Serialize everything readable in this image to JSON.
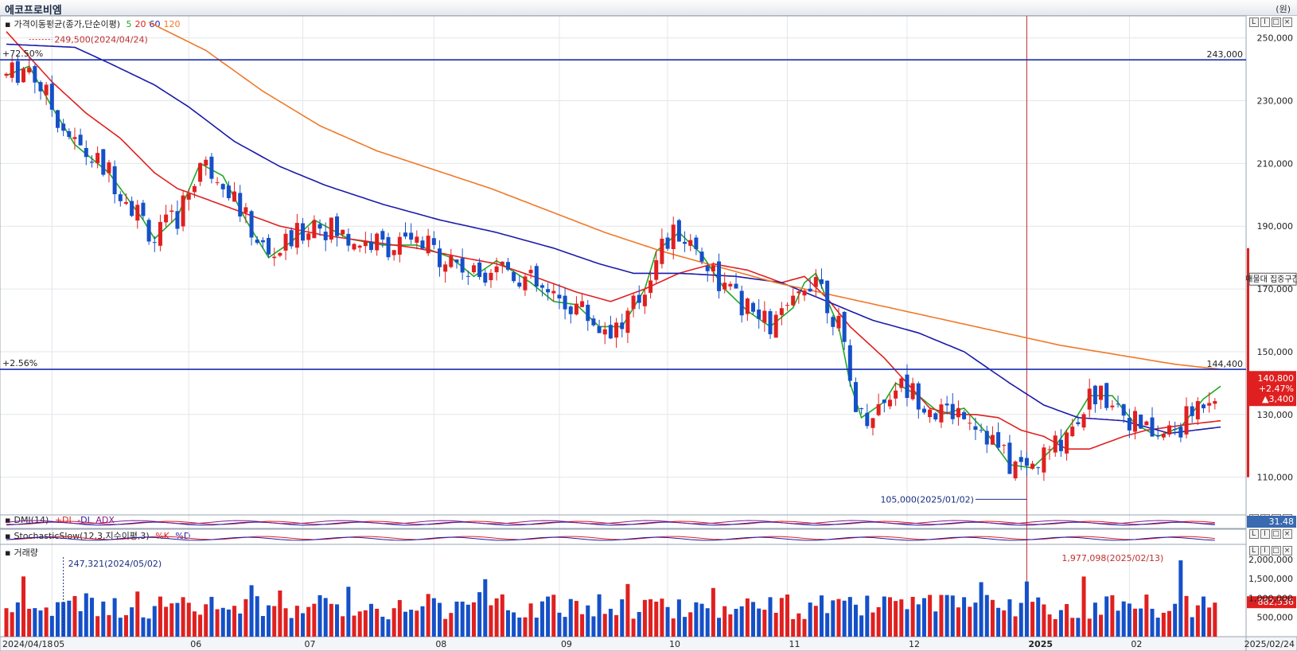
{
  "window": {
    "title": "에코프로비엠",
    "unit": "(원)"
  },
  "price_pane": {
    "legend_label": "가격이동평균(종가,단순이평)",
    "ma_labels": [
      {
        "name": "5",
        "color": "#22a822"
      },
      {
        "name": "20",
        "color": "#e02020"
      },
      {
        "name": "60",
        "color": "#1a1aaa"
      },
      {
        "name": "120",
        "color": "#f07828"
      }
    ],
    "hline_high": {
      "value": "243,000",
      "pct": "+72.50%"
    },
    "hline_low": {
      "value": "144,400",
      "pct": "+2.56%"
    },
    "peak_note": "249,500(2024/04/24)",
    "trough_note": "105,000(2025/01/02)",
    "last_price": {
      "price": "140,800",
      "pct": "+2.47%",
      "change": "▲3,400"
    },
    "concentration_label": "매물대 집중구간"
  },
  "dmi_pane": {
    "label": "DMI(14)",
    "plus": "+DI",
    "minus": "-DI",
    "adx": "ADX",
    "value": "31.48"
  },
  "stoch_pane": {
    "label": "StochasticSlow(12,3,지수이평,3)",
    "k": "%K",
    "d": "%D"
  },
  "volume_pane": {
    "label": "거래량",
    "peak_note_left": "247,321(2024/05/02)",
    "peak_note_right": "1,977,098(2025/02/13)",
    "last_volume": "882,536",
    "y_ticks": [
      "2,000,000",
      "1,500,000",
      "1,000,000",
      "500,000"
    ]
  },
  "x_axis": {
    "start_label": "2024/04/18",
    "end_label": "2025/02/24",
    "months": [
      {
        "label": "05",
        "day": 8
      },
      {
        "label": "06",
        "day": 32
      },
      {
        "label": "07",
        "day": 52
      },
      {
        "label": "08",
        "day": 75
      },
      {
        "label": "09",
        "day": 97
      },
      {
        "label": "10",
        "day": 116
      },
      {
        "label": "11",
        "day": 137
      },
      {
        "label": "12",
        "day": 158
      },
      {
        "label": "2025",
        "day": 179
      },
      {
        "label": "02",
        "day": 197
      }
    ]
  },
  "chart_data": {
    "type": "candlestick",
    "y_ticks": [
      250000,
      230000,
      210000,
      190000,
      170000,
      150000,
      130000,
      110000
    ],
    "ylim": [
      98000,
      257000
    ],
    "volume_ylim": [
      0,
      2350000
    ],
    "trading_days": 213,
    "vertical_marker_day": 179,
    "ma_keypoints": {
      "ma5": [
        [
          0,
          238000
        ],
        [
          4,
          241000
        ],
        [
          8,
          228000
        ],
        [
          12,
          216000
        ],
        [
          18,
          207000
        ],
        [
          24,
          192000
        ],
        [
          26,
          186000
        ],
        [
          30,
          193000
        ],
        [
          34,
          210000
        ],
        [
          38,
          206000
        ],
        [
          42,
          192000
        ],
        [
          46,
          180000
        ],
        [
          50,
          185000
        ],
        [
          54,
          192000
        ],
        [
          60,
          186000
        ],
        [
          66,
          184000
        ],
        [
          72,
          184000
        ],
        [
          78,
          180000
        ],
        [
          82,
          174000
        ],
        [
          86,
          179000
        ],
        [
          92,
          172000
        ],
        [
          96,
          166000
        ],
        [
          100,
          165000
        ],
        [
          104,
          158000
        ],
        [
          108,
          158000
        ],
        [
          112,
          170000
        ],
        [
          114,
          182000
        ],
        [
          118,
          188000
        ],
        [
          122,
          181000
        ],
        [
          126,
          170000
        ],
        [
          130,
          163000
        ],
        [
          134,
          158000
        ],
        [
          138,
          164000
        ],
        [
          140,
          172000
        ],
        [
          142,
          175000
        ],
        [
          146,
          158000
        ],
        [
          148,
          140000
        ],
        [
          150,
          129000
        ],
        [
          154,
          134000
        ],
        [
          156,
          140000
        ],
        [
          160,
          136000
        ],
        [
          164,
          130000
        ],
        [
          168,
          132000
        ],
        [
          172,
          124000
        ],
        [
          176,
          114000
        ],
        [
          180,
          113000
        ],
        [
          184,
          120000
        ],
        [
          188,
          130000
        ],
        [
          190,
          136000
        ],
        [
          194,
          136000
        ],
        [
          198,
          127000
        ],
        [
          202,
          123000
        ],
        [
          206,
          126000
        ],
        [
          210,
          135000
        ],
        [
          213,
          139000
        ]
      ],
      "ma20": [
        [
          0,
          252000
        ],
        [
          8,
          236000
        ],
        [
          14,
          226000
        ],
        [
          20,
          218000
        ],
        [
          26,
          207000
        ],
        [
          30,
          202000
        ],
        [
          36,
          198000
        ],
        [
          42,
          194000
        ],
        [
          48,
          190000
        ],
        [
          56,
          187000
        ],
        [
          64,
          185000
        ],
        [
          72,
          183000
        ],
        [
          80,
          180000
        ],
        [
          86,
          178000
        ],
        [
          94,
          173000
        ],
        [
          100,
          169000
        ],
        [
          106,
          166000
        ],
        [
          112,
          170000
        ],
        [
          118,
          175000
        ],
        [
          124,
          178000
        ],
        [
          130,
          176000
        ],
        [
          136,
          172000
        ],
        [
          140,
          174000
        ],
        [
          144,
          167000
        ],
        [
          148,
          158000
        ],
        [
          154,
          148000
        ],
        [
          158,
          140000
        ],
        [
          162,
          132000
        ],
        [
          166,
          130000
        ],
        [
          170,
          130000
        ],
        [
          174,
          129000
        ],
        [
          178,
          125000
        ],
        [
          182,
          123000
        ],
        [
          186,
          119000
        ],
        [
          190,
          119000
        ],
        [
          196,
          123000
        ],
        [
          200,
          125000
        ],
        [
          204,
          126000
        ],
        [
          208,
          127000
        ],
        [
          213,
          128000
        ]
      ],
      "ma60": [
        [
          0,
          248000
        ],
        [
          12,
          247000
        ],
        [
          18,
          242000
        ],
        [
          26,
          235000
        ],
        [
          32,
          228000
        ],
        [
          40,
          217000
        ],
        [
          48,
          209000
        ],
        [
          56,
          203000
        ],
        [
          66,
          197000
        ],
        [
          76,
          192000
        ],
        [
          86,
          188000
        ],
        [
          96,
          183000
        ],
        [
          104,
          178000
        ],
        [
          110,
          175000
        ],
        [
          118,
          175000
        ],
        [
          128,
          174000
        ],
        [
          136,
          172000
        ],
        [
          144,
          166000
        ],
        [
          152,
          160000
        ],
        [
          160,
          156000
        ],
        [
          168,
          150000
        ],
        [
          176,
          140000
        ],
        [
          182,
          133000
        ],
        [
          188,
          129000
        ],
        [
          196,
          128000
        ],
        [
          204,
          124000
        ],
        [
          213,
          126000
        ]
      ],
      "ma120": [
        [
          25,
          255000
        ],
        [
          35,
          246000
        ],
        [
          45,
          233000
        ],
        [
          55,
          222000
        ],
        [
          65,
          214000
        ],
        [
          75,
          208000
        ],
        [
          85,
          202000
        ],
        [
          95,
          195000
        ],
        [
          105,
          188000
        ],
        [
          115,
          182000
        ],
        [
          125,
          177000
        ],
        [
          135,
          172000
        ],
        [
          145,
          168000
        ],
        [
          155,
          164000
        ],
        [
          165,
          160000
        ],
        [
          175,
          156000
        ],
        [
          185,
          152000
        ],
        [
          195,
          149000
        ],
        [
          205,
          146000
        ],
        [
          213,
          144400
        ]
      ]
    },
    "ma_labels": [
      "5",
      "20",
      "60",
      "120"
    ]
  }
}
